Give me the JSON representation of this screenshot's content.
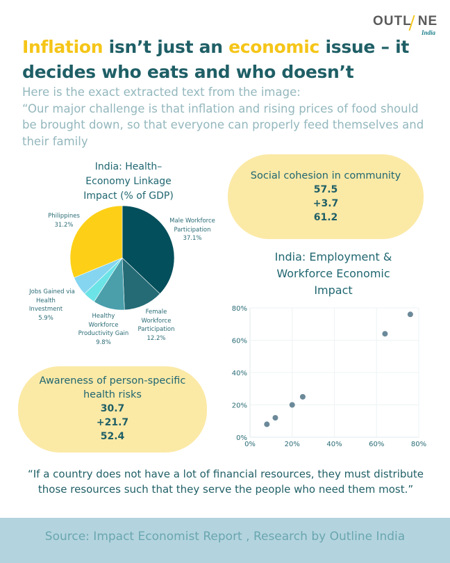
{
  "logo": {
    "main": "OUTLINE",
    "part1": "OUTL",
    "part2": "NE",
    "sub": "India"
  },
  "headline": {
    "segments": [
      {
        "text": "Inflation",
        "highlight": true
      },
      {
        "text": " isn’t just an ",
        "highlight": false
      },
      {
        "text": "economic",
        "highlight": true
      },
      {
        "text": " issue – it decides who eats and who doesn’t",
        "highlight": false
      }
    ]
  },
  "intro": {
    "line1": "Here is the exact extracted text from the image:",
    "quote": "“Our major challenge is that inflation and rising prices of food should be brought down, so that everyone can properly feed themselves and their family"
  },
  "stat_cards": [
    {
      "label": "Social cohesion in community",
      "baseline": "57.5",
      "change": "+3.7",
      "result": "61.2"
    },
    {
      "label": "Awareness of person-specific health risks",
      "baseline": "30.7",
      "change": "+21.7",
      "result": "52.4"
    }
  ],
  "quote": "“If a country does not have a lot of financial resources, they must distribute those resources such that they serve the people who need them most.”",
  "footer": {
    "source": "Source: Impact Economist Report , Research by Outline India"
  },
  "colors": {
    "accent_yellow": "#f5c518",
    "teal_dark": "#1f5f66",
    "card_bg": "#fbe9a6",
    "footer_bg": "#b3d4df"
  },
  "chart_data": [
    {
      "type": "pie",
      "title": "India: Health-Economy Linkage Impact (% of GDP)",
      "slices": [
        {
          "name": "Male Workforce Participation",
          "value": 37.1,
          "label": "37.1%",
          "color": "#034f5c"
        },
        {
          "name": "Female Workforce Participation",
          "value": 12.2,
          "label": "12.2%",
          "color": "#246b75"
        },
        {
          "name": "Healthy Workforce Productivity Gain",
          "value": 9.8,
          "label": "9.8%",
          "color": "#4a9fab"
        },
        {
          "name": "",
          "value": 3.8,
          "label": "",
          "color": "#6ce3e6"
        },
        {
          "name": "Jobs Gained via Health Investment",
          "value": 5.9,
          "label": "5.9%",
          "color": "#85d5f0"
        },
        {
          "name": "Philippines",
          "value": 31.2,
          "label": "31.2%",
          "color": "#fdd017"
        }
      ],
      "label_lines": {
        "male": [
          "Male Workforce",
          "Participation",
          "37.1%"
        ],
        "female": [
          "Female",
          "Workforce",
          "Participation",
          "12.2%"
        ],
        "healthy": [
          "Healthy",
          "Workforce",
          "Productivity Gain",
          "9.8%"
        ],
        "jobs": [
          "Jobs Gained via",
          "Health",
          "Investment",
          "5.9%"
        ],
        "philippines": [
          "Philippines",
          "31.2%"
        ]
      },
      "title_lines": [
        "India: Health–",
        "Economy Linkage",
        "Impact (% of GDP)"
      ]
    },
    {
      "type": "scatter",
      "title": "India: Employment & Workforce Economic Impact",
      "title_lines": [
        "India: Employment &",
        "Workforce Economic",
        "Impact"
      ],
      "xlabel": "",
      "ylabel": "",
      "xlim": [
        0,
        80
      ],
      "ylim": [
        0,
        80
      ],
      "xticks": [
        "0%",
        "20%",
        "40%",
        "60%",
        "80%"
      ],
      "yticks": [
        "0%",
        "20%",
        "40%",
        "60%",
        "80%"
      ],
      "grid": true,
      "point_color": "#6b8999",
      "points": [
        {
          "x": 8,
          "y": 8
        },
        {
          "x": 12,
          "y": 12
        },
        {
          "x": 20,
          "y": 20
        },
        {
          "x": 25,
          "y": 25
        },
        {
          "x": 64,
          "y": 64
        },
        {
          "x": 76,
          "y": 76
        }
      ]
    }
  ]
}
